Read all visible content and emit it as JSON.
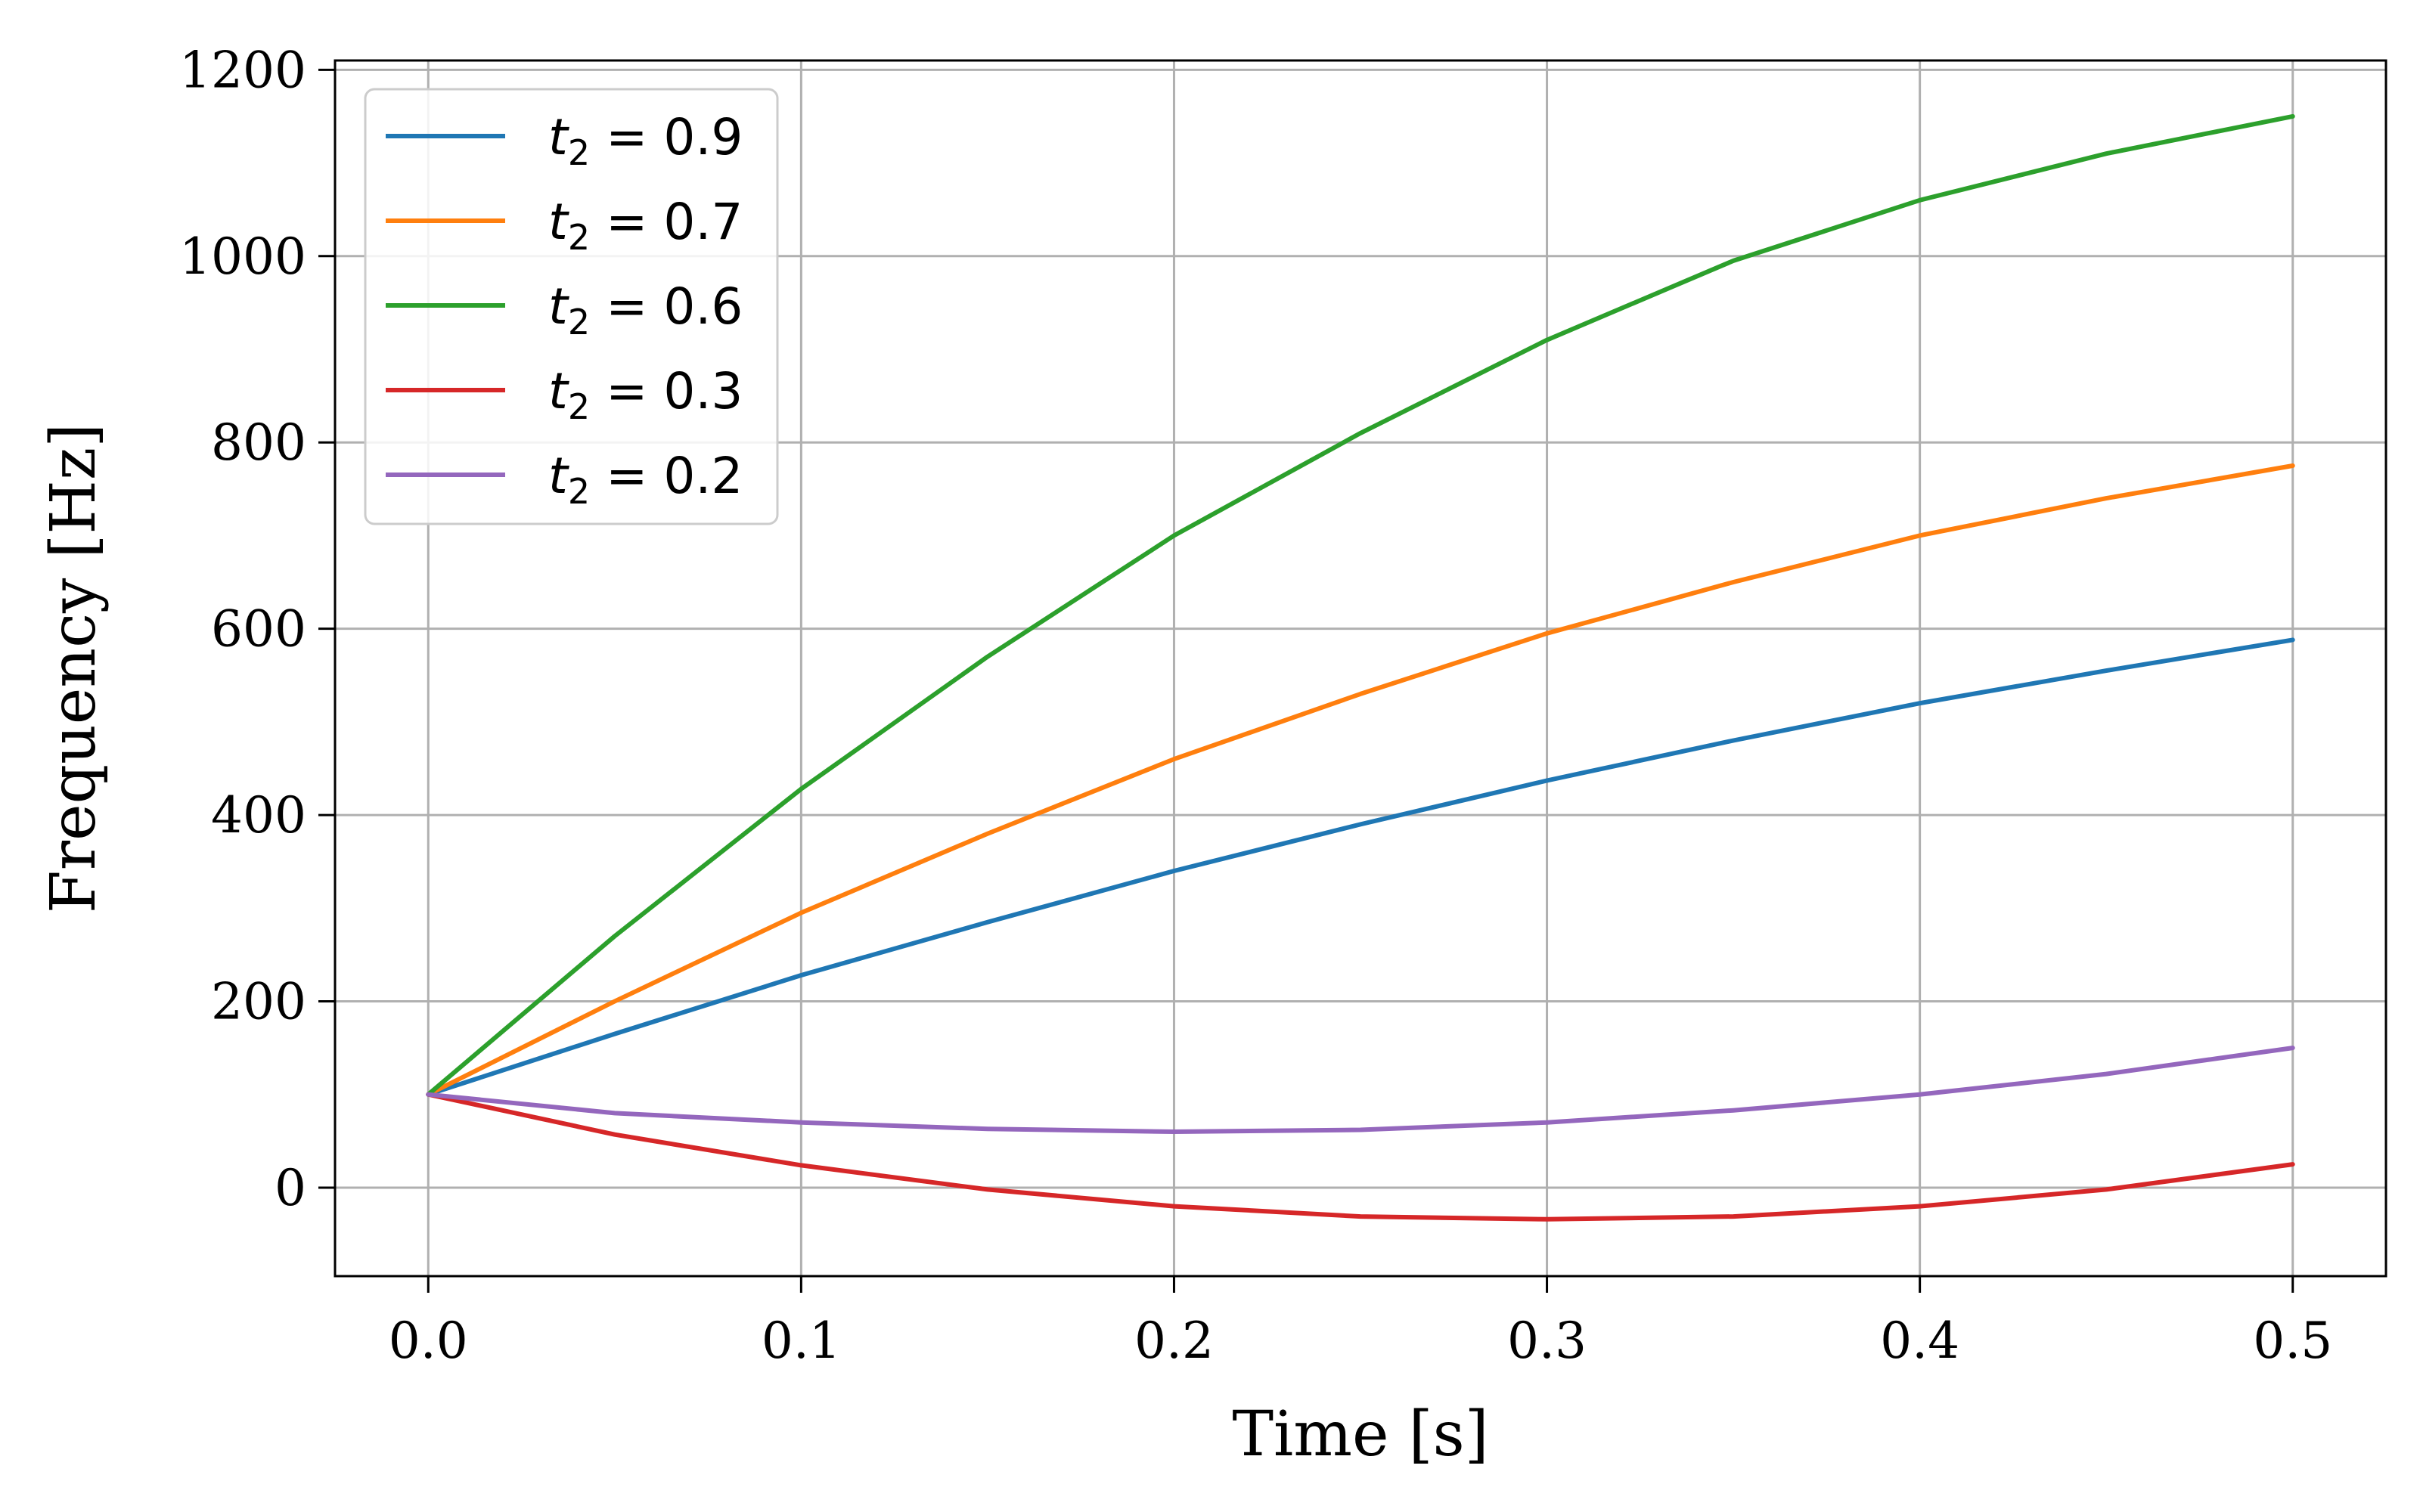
{
  "chart_data": {
    "type": "line",
    "title": "",
    "xlabel": "Time [s]",
    "ylabel": "Frequency [Hz]",
    "xlim": [
      -0.025,
      0.525
    ],
    "ylim": [
      -95,
      1210
    ],
    "xticks": [
      0.0,
      0.1,
      0.2,
      0.3,
      0.4,
      0.5
    ],
    "xtick_labels": [
      "0.0",
      "0.1",
      "0.2",
      "0.3",
      "0.4",
      "0.5"
    ],
    "yticks": [
      0,
      200,
      400,
      600,
      800,
      1000,
      1200
    ],
    "ytick_labels": [
      "0",
      "200",
      "400",
      "600",
      "800",
      "1000",
      "1200"
    ],
    "grid": true,
    "legend_position": "top-left",
    "legend_var": "t",
    "legend_sub": "2",
    "series": [
      {
        "name": "t2 = 0.9",
        "legend_value": "0.9",
        "color": "#1f77b4",
        "x": [
          0.0,
          0.05,
          0.1,
          0.15,
          0.2,
          0.25,
          0.3,
          0.35,
          0.4,
          0.45,
          0.5
        ],
        "y": [
          100,
          165,
          228,
          285,
          340,
          390,
          437,
          480,
          520,
          555,
          588
        ]
      },
      {
        "name": "t2 = 0.7",
        "legend_value": "0.7",
        "color": "#ff7f0e",
        "x": [
          0.0,
          0.05,
          0.1,
          0.15,
          0.2,
          0.25,
          0.3,
          0.35,
          0.4,
          0.45,
          0.5
        ],
        "y": [
          100,
          200,
          295,
          380,
          460,
          530,
          595,
          650,
          700,
          740,
          775
        ]
      },
      {
        "name": "t2 = 0.6",
        "legend_value": "0.6",
        "color": "#2ca02c",
        "x": [
          0.0,
          0.05,
          0.1,
          0.15,
          0.2,
          0.25,
          0.3,
          0.35,
          0.4,
          0.45,
          0.5
        ],
        "y": [
          100,
          270,
          428,
          570,
          700,
          810,
          910,
          995,
          1060,
          1110,
          1150
        ]
      },
      {
        "name": "t2 = 0.3",
        "legend_value": "0.3",
        "color": "#d62728",
        "x": [
          0.0,
          0.05,
          0.1,
          0.15,
          0.2,
          0.25,
          0.3,
          0.35,
          0.4,
          0.45,
          0.5
        ],
        "y": [
          100,
          57,
          24,
          -2,
          -20,
          -31,
          -34,
          -31,
          -20,
          -2,
          25
        ]
      },
      {
        "name": "t2 = 0.2",
        "legend_value": "0.2",
        "color": "#9467bd",
        "x": [
          0.0,
          0.05,
          0.1,
          0.15,
          0.2,
          0.25,
          0.3,
          0.35,
          0.4,
          0.45,
          0.5
        ],
        "y": [
          100,
          80,
          70,
          63,
          60,
          62,
          70,
          83,
          100,
          122,
          150
        ]
      }
    ]
  }
}
